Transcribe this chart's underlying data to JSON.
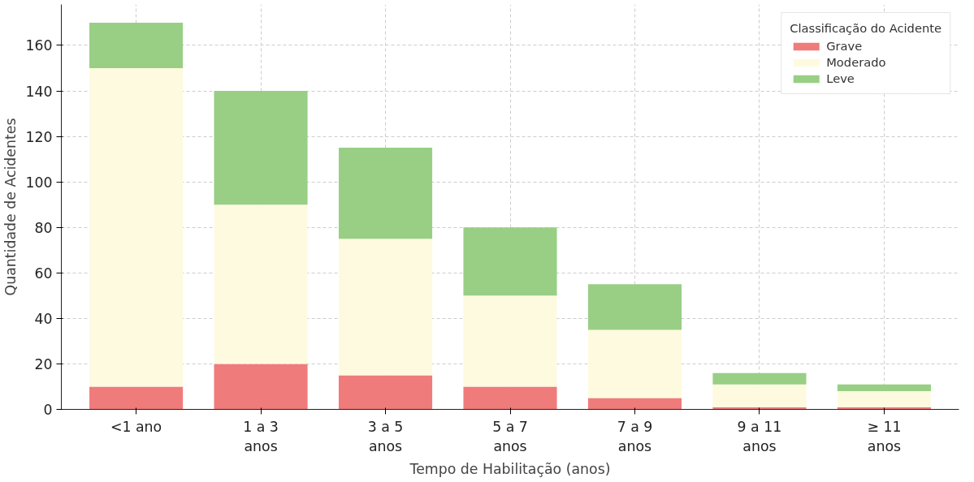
{
  "chart_data": {
    "type": "bar",
    "stacked": true,
    "xlabel": "Tempo de Habilitação (anos)",
    "ylabel": "Quantidade de Acidentes",
    "legend_title": "Classificação do Acidente",
    "categories": [
      "<1 ano",
      "1 a 3\nanos",
      "3 a 5\nanos",
      "5 a 7\nanos",
      "7 a 9\nanos",
      "9 a 11\nanos",
      "≥ 11\nanos"
    ],
    "series": [
      {
        "name": "Grave",
        "color": "#f07b7b",
        "values": [
          10,
          20,
          15,
          10,
          5,
          1,
          1
        ]
      },
      {
        "name": "Moderado",
        "color": "#fefae0",
        "values": [
          140,
          70,
          60,
          40,
          30,
          10,
          7
        ]
      },
      {
        "name": "Leve",
        "color": "#98cf85",
        "values": [
          20,
          50,
          40,
          30,
          20,
          5,
          3
        ]
      }
    ],
    "ylim": [
      0,
      178
    ],
    "yticks": [
      0,
      20,
      40,
      60,
      80,
      100,
      120,
      140,
      160
    ],
    "grid": true,
    "legend": "top right"
  }
}
